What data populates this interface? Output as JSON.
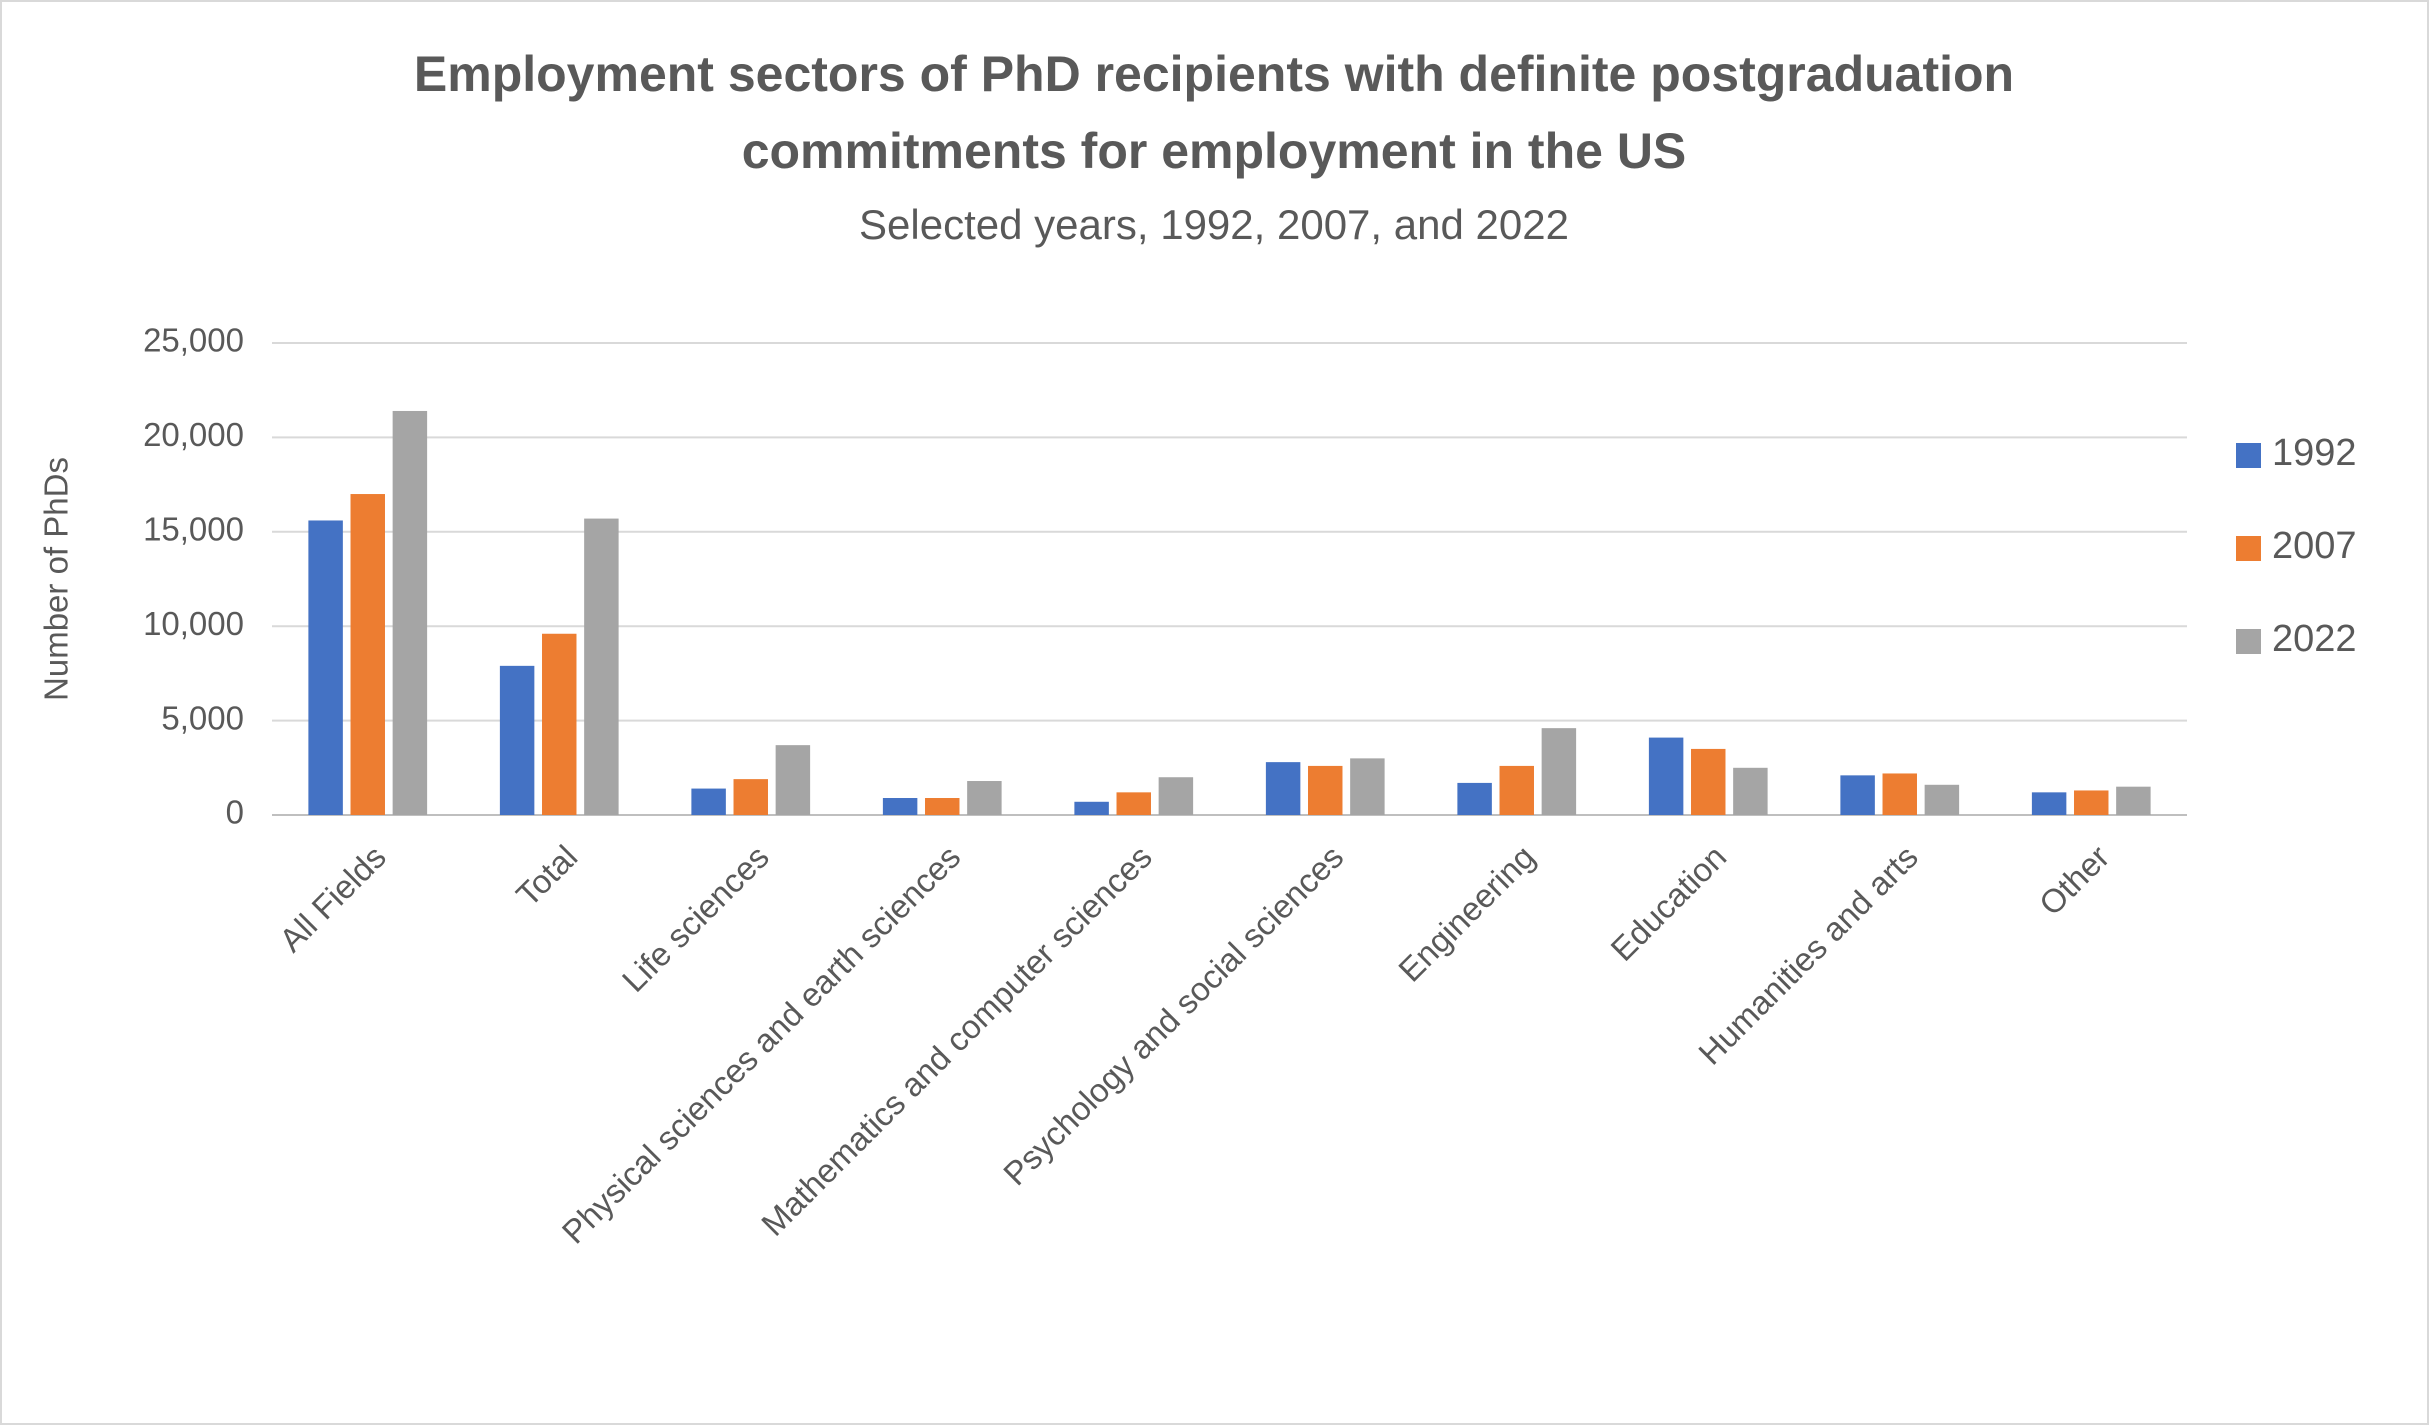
{
  "chart_data": {
    "type": "bar",
    "title": [
      "Employment sectors of PhD recipients with definite postgraduation",
      "commitments for employment in the US"
    ],
    "subtitle": "Selected years, 1992, 2007, and 2022",
    "y_label": "Number of PhDs",
    "categories": [
      "All Fields",
      "Total",
      "Life sciences",
      "Physical sciences and earth sciences",
      "Mathematics and computer sciences",
      "Psychology and social sciences",
      "Engineering",
      "Education",
      "Humanities and arts",
      "Other"
    ],
    "series": [
      {
        "name": "1992",
        "color": "#4472c4",
        "values": [
          15600,
          7900,
          1400,
          900,
          700,
          2800,
          1700,
          4100,
          2100,
          1200
        ]
      },
      {
        "name": "2007",
        "color": "#ed7d31",
        "values": [
          17000,
          9600,
          1900,
          900,
          1200,
          2600,
          2600,
          3500,
          2200,
          1300
        ]
      },
      {
        "name": "2022",
        "color": "#a5a5a5",
        "values": [
          21400,
          15700,
          3700,
          1800,
          2000,
          3000,
          4600,
          2500,
          1600,
          1500
        ]
      }
    ],
    "ylim": [
      0,
      25000
    ],
    "yticks": [
      0,
      {
        "value": 5000,
        "label": "5,000"
      },
      {
        "value": 10000,
        "label": "10,000"
      },
      {
        "value": 15000,
        "label": "15,000"
      },
      {
        "value": 20000,
        "label": "20,000"
      },
      {
        "value": 25000,
        "label": "25,000"
      }
    ],
    "grid": true,
    "legend": "right"
  }
}
